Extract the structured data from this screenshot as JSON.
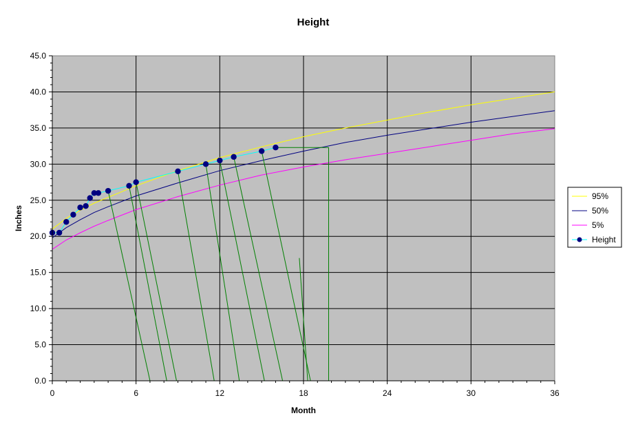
{
  "chart_data": {
    "type": "line",
    "title": "Height",
    "xlabel": "Month",
    "ylabel": "Inches",
    "xlim": [
      0,
      36
    ],
    "ylim": [
      0,
      45
    ],
    "x_ticks": [
      "0",
      "6",
      "12",
      "18",
      "24",
      "30",
      "36"
    ],
    "y_ticks": [
      "0.0",
      "5.0",
      "10.0",
      "15.0",
      "20.0",
      "25.0",
      "30.0",
      "35.0",
      "40.0",
      "45.0"
    ],
    "grid": true,
    "legend_position": "right",
    "series": [
      {
        "name": "95%",
        "color": "#ffff00",
        "x": [
          0,
          1,
          2,
          3,
          4,
          6,
          9,
          12,
          15,
          18,
          21,
          24,
          27,
          30,
          33,
          36
        ],
        "y": [
          21.0,
          22.5,
          23.6,
          24.6,
          25.4,
          27.0,
          29.1,
          30.9,
          32.4,
          33.8,
          35.0,
          36.1,
          37.2,
          38.2,
          39.1,
          40.0
        ]
      },
      {
        "name": "50%",
        "color": "#000080",
        "x": [
          0,
          1,
          2,
          3,
          4,
          6,
          9,
          12,
          15,
          18,
          21,
          24,
          27,
          30,
          33,
          36
        ],
        "y": [
          19.8,
          21.2,
          22.3,
          23.3,
          24.1,
          25.6,
          27.4,
          29.1,
          30.5,
          31.8,
          33.0,
          34.0,
          34.9,
          35.8,
          36.6,
          37.4
        ]
      },
      {
        "name": "5%",
        "color": "#ff00ff",
        "x": [
          0,
          1,
          2,
          3,
          4,
          6,
          9,
          12,
          15,
          18,
          21,
          24,
          27,
          30,
          33,
          36
        ],
        "y": [
          18.2,
          19.5,
          20.5,
          21.4,
          22.2,
          23.7,
          25.5,
          27.1,
          28.5,
          29.6,
          30.6,
          31.5,
          32.4,
          33.3,
          34.2,
          34.9
        ]
      },
      {
        "name": "Height",
        "color": "#00ffff",
        "marker_color": "#000080",
        "x": [
          0,
          0.5,
          1,
          1.5,
          2,
          2.4,
          2.7,
          3.0,
          3.3,
          4.0,
          5.5,
          6.0,
          9.0,
          11.0,
          12.0,
          13.0,
          15.0,
          16.0
        ],
        "y": [
          20.5,
          20.5,
          22.0,
          23.0,
          24.0,
          24.2,
          25.3,
          26.0,
          26.0,
          26.3,
          27.0,
          27.5,
          29.0,
          30.0,
          30.5,
          31.0,
          31.8,
          32.3
        ]
      }
    ],
    "drop_lines": [
      {
        "from": [
          4.0,
          26.3
        ],
        "to": [
          7.0,
          0
        ]
      },
      {
        "from": [
          5.5,
          27.0
        ],
        "to": [
          8.2,
          0
        ]
      },
      {
        "from": [
          6.0,
          27.5
        ],
        "to": [
          8.9,
          0
        ]
      },
      {
        "from": [
          9.0,
          29.0
        ],
        "to": [
          11.6,
          0
        ]
      },
      {
        "from": [
          11.0,
          30.0
        ],
        "to": [
          13.4,
          0
        ]
      },
      {
        "from": [
          12.0,
          30.5
        ],
        "to": [
          15.2,
          0
        ]
      },
      {
        "from": [
          13.0,
          31.0
        ],
        "to": [
          16.5,
          0
        ]
      },
      {
        "from": [
          15.0,
          31.8
        ],
        "to": [
          18.5,
          0
        ]
      },
      {
        "from": [
          16.0,
          32.3
        ],
        "to": [
          19.8,
          32.3
        ]
      },
      {
        "from": [
          19.8,
          32.3
        ],
        "to": [
          19.8,
          0
        ]
      },
      {
        "from": [
          17.7,
          17.0
        ],
        "to": [
          18.3,
          0
        ]
      }
    ],
    "drop_line_color": "#008000"
  }
}
